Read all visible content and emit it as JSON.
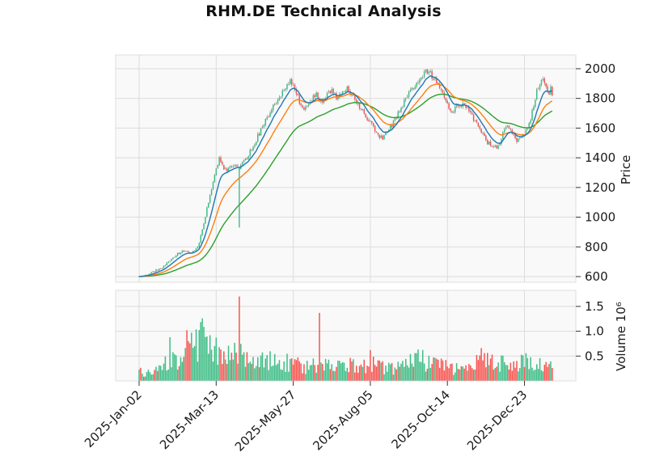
{
  "title": "RHM.DE Technical Analysis",
  "colors": {
    "up": "#3dbd85",
    "down": "#f7534f",
    "ma_fast": "#1f77b4",
    "ma_mid": "#ff7f0e",
    "ma_slow": "#2ca02c",
    "wick": "#787878",
    "panel_bg": "#f9f9f9",
    "grid": "#dcdcdc",
    "tick_text": "#1a1a1a"
  },
  "chart_data": {
    "type": "candlestick",
    "title": "RHM.DE Technical Analysis",
    "legend": "none",
    "grid": true,
    "panels": [
      "price",
      "volume"
    ],
    "x_axis": {
      "tick_labels": [
        "2025-Jan-02",
        "2025-Mar-13",
        "2025-May-27",
        "2025-Aug-05",
        "2025-Oct-14",
        "2025-Dec-23"
      ],
      "tick_days": [
        0,
        50,
        100,
        150,
        200,
        250
      ],
      "total_days": 269,
      "label_rotation_deg": 45
    },
    "price_panel": {
      "ylabel": "Price",
      "ytick_values": [
        600,
        800,
        1000,
        1200,
        1400,
        1600,
        1800,
        2000
      ],
      "ylim": [
        560,
        2090
      ],
      "overlays": [
        {
          "name": "ma-fast",
          "type": "ema",
          "span": 9,
          "color_key": "ma_fast"
        },
        {
          "name": "ma-mid",
          "type": "ema",
          "span": 21,
          "color_key": "ma_mid"
        },
        {
          "name": "ma-slow",
          "type": "ema",
          "span": 48,
          "color_key": "ma_slow"
        }
      ],
      "close_keyframes": [
        [
          0,
          600
        ],
        [
          5,
          615
        ],
        [
          10,
          636
        ],
        [
          15,
          662
        ],
        [
          20,
          706
        ],
        [
          23,
          735
        ],
        [
          26,
          760
        ],
        [
          30,
          775
        ],
        [
          33,
          762
        ],
        [
          36,
          770
        ],
        [
          38,
          800
        ],
        [
          40,
          870
        ],
        [
          42,
          960
        ],
        [
          44,
          1060
        ],
        [
          46,
          1150
        ],
        [
          48,
          1240
        ],
        [
          50,
          1330
        ],
        [
          52,
          1395
        ],
        [
          54,
          1345
        ],
        [
          57,
          1312
        ],
        [
          60,
          1338
        ],
        [
          63,
          1348
        ],
        [
          65,
          1330
        ],
        [
          68,
          1372
        ],
        [
          72,
          1442
        ],
        [
          76,
          1522
        ],
        [
          80,
          1612
        ],
        [
          84,
          1692
        ],
        [
          88,
          1762
        ],
        [
          92,
          1822
        ],
        [
          95,
          1868
        ],
        [
          98,
          1925
        ],
        [
          100,
          1892
        ],
        [
          102,
          1822
        ],
        [
          105,
          1762
        ],
        [
          108,
          1726
        ],
        [
          112,
          1796
        ],
        [
          115,
          1832
        ],
        [
          118,
          1778
        ],
        [
          121,
          1812
        ],
        [
          125,
          1842
        ],
        [
          128,
          1802
        ],
        [
          131,
          1832
        ],
        [
          135,
          1872
        ],
        [
          138,
          1822
        ],
        [
          141,
          1772
        ],
        [
          144,
          1726
        ],
        [
          147,
          1682
        ],
        [
          150,
          1638
        ],
        [
          153,
          1588
        ],
        [
          156,
          1542
        ],
        [
          158,
          1522
        ],
        [
          161,
          1572
        ],
        [
          164,
          1622
        ],
        [
          168,
          1702
        ],
        [
          172,
          1778
        ],
        [
          176,
          1848
        ],
        [
          180,
          1902
        ],
        [
          183,
          1942
        ],
        [
          186,
          1978
        ],
        [
          188,
          1985
        ],
        [
          190,
          1952
        ],
        [
          193,
          1906
        ],
        [
          196,
          1856
        ],
        [
          199,
          1792
        ],
        [
          201,
          1732
        ],
        [
          203,
          1700
        ],
        [
          205,
          1746
        ],
        [
          208,
          1766
        ],
        [
          211,
          1742
        ],
        [
          214,
          1712
        ],
        [
          218,
          1642
        ],
        [
          222,
          1562
        ],
        [
          226,
          1506
        ],
        [
          229,
          1480
        ],
        [
          232,
          1462
        ],
        [
          235,
          1532
        ],
        [
          237,
          1602
        ],
        [
          239,
          1626
        ],
        [
          241,
          1582
        ],
        [
          243,
          1542
        ],
        [
          245,
          1516
        ],
        [
          247,
          1522
        ],
        [
          250,
          1560
        ],
        [
          252,
          1600
        ],
        [
          254,
          1652
        ],
        [
          256,
          1762
        ],
        [
          258,
          1852
        ],
        [
          260,
          1912
        ],
        [
          262,
          1945
        ],
        [
          263,
          1920
        ],
        [
          264,
          1882
        ],
        [
          265,
          1856
        ],
        [
          266,
          1836
        ],
        [
          267,
          1862
        ],
        [
          268,
          1826
        ]
      ],
      "special_candle": {
        "day": 65,
        "open": 1316,
        "close": 1334,
        "low": 930
      }
    },
    "volume_panel": {
      "ylabel": "Volume  10⁶",
      "ytick_values": [
        0.5,
        1.0,
        1.5
      ],
      "ytick_labels": [
        "0.5",
        "1.0",
        "1.5"
      ],
      "unit": "millions",
      "ylim": [
        0,
        1.84
      ],
      "volume_keyframes": [
        [
          0,
          0.18
        ],
        [
          8,
          0.15
        ],
        [
          15,
          0.22
        ],
        [
          20,
          0.42
        ],
        [
          25,
          0.32
        ],
        [
          30,
          0.55
        ],
        [
          33,
          0.65
        ],
        [
          36,
          0.58
        ],
        [
          40,
          0.8
        ],
        [
          44,
          0.68
        ],
        [
          48,
          0.58
        ],
        [
          52,
          0.52
        ],
        [
          56,
          0.45
        ],
        [
          60,
          0.5
        ],
        [
          65,
          0.52
        ],
        [
          70,
          0.45
        ],
        [
          75,
          0.4
        ],
        [
          80,
          0.36
        ],
        [
          85,
          0.4
        ],
        [
          90,
          0.44
        ],
        [
          95,
          0.36
        ],
        [
          100,
          0.3
        ],
        [
          105,
          0.28
        ],
        [
          110,
          0.26
        ],
        [
          117,
          0.3
        ],
        [
          122,
          0.28
        ],
        [
          128,
          0.26
        ],
        [
          134,
          0.3
        ],
        [
          140,
          0.28
        ],
        [
          146,
          0.26
        ],
        [
          150,
          0.34
        ],
        [
          155,
          0.3
        ],
        [
          160,
          0.25
        ],
        [
          165,
          0.22
        ],
        [
          170,
          0.26
        ],
        [
          175,
          0.3
        ],
        [
          178,
          0.42
        ],
        [
          181,
          0.5
        ],
        [
          184,
          0.38
        ],
        [
          188,
          0.34
        ],
        [
          192,
          0.3
        ],
        [
          196,
          0.28
        ],
        [
          200,
          0.25
        ],
        [
          205,
          0.22
        ],
        [
          210,
          0.22
        ],
        [
          215,
          0.26
        ],
        [
          220,
          0.36
        ],
        [
          224,
          0.5
        ],
        [
          228,
          0.42
        ],
        [
          232,
          0.38
        ],
        [
          238,
          0.3
        ],
        [
          244,
          0.28
        ],
        [
          250,
          0.34
        ],
        [
          254,
          0.4
        ],
        [
          258,
          0.36
        ],
        [
          262,
          0.33
        ],
        [
          268,
          0.24
        ]
      ],
      "volume_spikes": [
        [
          20,
          0.88
        ],
        [
          31,
          1.02
        ],
        [
          41,
          1.26
        ],
        [
          46,
          0.92
        ],
        [
          65,
          1.7
        ],
        [
          117,
          1.37
        ],
        [
          150,
          0.62
        ],
        [
          179,
          0.56
        ],
        [
          222,
          0.66
        ],
        [
          224,
          0.56
        ],
        [
          252,
          0.46
        ]
      ]
    }
  }
}
